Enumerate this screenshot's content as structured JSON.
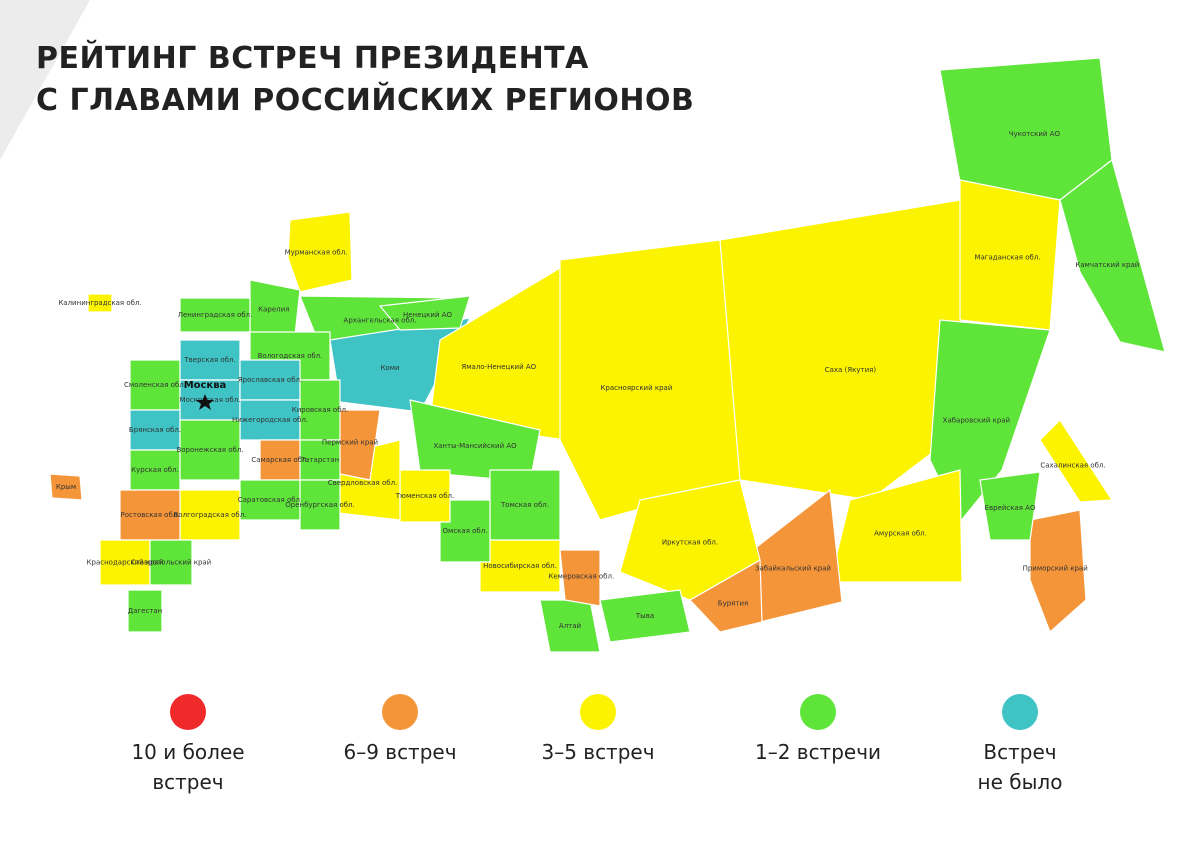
{
  "header": {
    "title_lines": [
      "РЕЙТИНГ ВСТРЕЧ ПРЕЗИДЕНТА",
      "С ГЛАВАМИ РОССИЙСКИХ РЕГИОНОВ"
    ]
  },
  "capital": "Москва",
  "regions": [
    {
      "name": "Мурманская обл.",
      "color": "#fbf300"
    },
    {
      "name": "Карелия",
      "color": "#5fe43a"
    },
    {
      "name": "Архангельская обл.",
      "color": "#5fe43a"
    },
    {
      "name": "Коми",
      "color": "#3fc3c4"
    },
    {
      "name": "Ненецкий АО",
      "color": "#5fe43a"
    },
    {
      "name": "Ямало-Ненецкий АО",
      "color": "#fbf300"
    },
    {
      "name": "Ханты-Мансийский АО",
      "color": "#5fe43a"
    },
    {
      "name": "Красноярский край",
      "color": "#fbf300"
    },
    {
      "name": "Саха (Якутия)",
      "color": "#fbf300"
    },
    {
      "name": "Чукотский АО",
      "color": "#5fe43a"
    },
    {
      "name": "Магаданская обл.",
      "color": "#fbf300"
    },
    {
      "name": "Камчатский край",
      "color": "#5fe43a"
    },
    {
      "name": "Хабаровский край",
      "color": "#5fe43a"
    },
    {
      "name": "Сахалинская обл.",
      "color": "#fbf300"
    },
    {
      "name": "Амурская обл.",
      "color": "#fbf300"
    },
    {
      "name": "Забайкальский край",
      "color": "#f5953a"
    },
    {
      "name": "Бурятия",
      "color": "#f5953a"
    },
    {
      "name": "Иркутская обл.",
      "color": "#fbf300"
    },
    {
      "name": "Приморский край",
      "color": "#f5953a"
    },
    {
      "name": "Еврейская АО",
      "color": "#5fe43a"
    },
    {
      "name": "Тыва",
      "color": "#5fe43a"
    },
    {
      "name": "Алтай",
      "color": "#5fe43a"
    },
    {
      "name": "Кемеровская обл.",
      "color": "#f5953a"
    },
    {
      "name": "Новосибирская обл.",
      "color": "#fbf300"
    },
    {
      "name": "Томская обл.",
      "color": "#5fe43a"
    },
    {
      "name": "Омская обл.",
      "color": "#5fe43a"
    },
    {
      "name": "Тюменская обл.",
      "color": "#fbf300"
    },
    {
      "name": "Свердловская обл.",
      "color": "#fbf300"
    },
    {
      "name": "Пермский край",
      "color": "#f5953a"
    },
    {
      "name": "Калининградская обл.",
      "color": "#fbf300"
    },
    {
      "name": "Ленинградская обл.",
      "color": "#5fe43a"
    },
    {
      "name": "Вологодская обл.",
      "color": "#5fe43a"
    },
    {
      "name": "Смоленская обл.",
      "color": "#5fe43a"
    },
    {
      "name": "Тверская обл.",
      "color": "#3fc3c4"
    },
    {
      "name": "Московская обл.",
      "color": "#3fc3c4"
    },
    {
      "name": "Ярославская обл.",
      "color": "#3fc3c4"
    },
    {
      "name": "Нижегородская обл.",
      "color": "#3fc3c4"
    },
    {
      "name": "Кировская обл.",
      "color": "#5fe43a"
    },
    {
      "name": "Брянская обл.",
      "color": "#3fc3c4"
    },
    {
      "name": "Курская обл.",
      "color": "#5fe43a"
    },
    {
      "name": "Воронежская обл.",
      "color": "#5fe43a"
    },
    {
      "name": "Самарская обл.",
      "color": "#f5953a"
    },
    {
      "name": "Татарстан",
      "color": "#5fe43a"
    },
    {
      "name": "Саратовская обл.",
      "color": "#5fe43a"
    },
    {
      "name": "Оренбургская обл.",
      "color": "#5fe43a"
    },
    {
      "name": "Волгоградская обл.",
      "color": "#fbf300"
    },
    {
      "name": "Ростовская обл.",
      "color": "#f5953a"
    },
    {
      "name": "Крым",
      "color": "#f5953a"
    },
    {
      "name": "Краснодарский край",
      "color": "#fbf300"
    },
    {
      "name": "Ставропольский край",
      "color": "#5fe43a"
    },
    {
      "name": "Дагестан",
      "color": "#5fe43a"
    }
  ],
  "legend": [
    {
      "label": "10 и более\nвстреч",
      "color": "#f02a2a"
    },
    {
      "label": "6–9 встреч",
      "color": "#f5953a"
    },
    {
      "label": "3–5 встреч",
      "color": "#fbf300"
    },
    {
      "label": "1–2 встречи",
      "color": "#5fe43a"
    },
    {
      "label": "Встреч\nне было",
      "color": "#3fc3c4"
    }
  ]
}
